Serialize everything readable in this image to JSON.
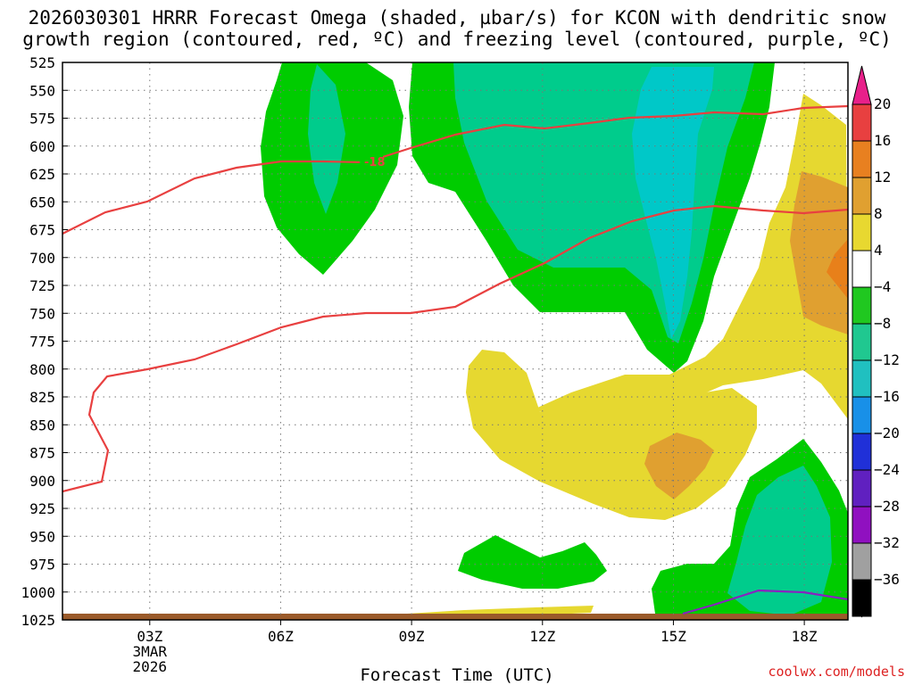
{
  "title": {
    "line1": "2026030301 HRRR Forecast Omega (shaded, µbar/s) for KCON with dendritic snow",
    "line2": "growth region (contoured, red, ºC) and freezing level (contoured, purple, ºC)"
  },
  "xlabel": "Forecast Time (UTC)",
  "credit": "coolwx.com/models",
  "chart_data": {
    "type": "heatmap",
    "y_axis": {
      "label": "",
      "reversed": true,
      "ticks": [
        525,
        550,
        575,
        600,
        625,
        650,
        675,
        700,
        725,
        750,
        775,
        800,
        825,
        850,
        875,
        900,
        925,
        950,
        975,
        1000,
        1025
      ],
      "range": [
        525,
        1025
      ]
    },
    "x_axis": {
      "label": "Forecast Time (UTC)",
      "range_hours": [
        0,
        18
      ],
      "ticks": [
        {
          "hour": 2,
          "label": "03Z",
          "sub": [
            "3MAR",
            "2026"
          ]
        },
        {
          "hour": 5,
          "label": "06Z",
          "sub": []
        },
        {
          "hour": 8,
          "label": "09Z",
          "sub": []
        },
        {
          "hour": 11,
          "label": "12Z",
          "sub": []
        },
        {
          "hour": 14,
          "label": "15Z",
          "sub": []
        },
        {
          "hour": 17,
          "label": "18Z",
          "sub": []
        }
      ]
    },
    "colorbar": {
      "labels": [
        "20",
        "16",
        "12",
        "8",
        "4",
        "−4",
        "−8",
        "−12",
        "−16",
        "−20",
        "−24",
        "−28",
        "−32",
        "−36"
      ],
      "colors": [
        "#f04060",
        "#e84040",
        "#e88020",
        "#e0a030",
        "#e8d830",
        "#ffffff",
        "#20c820",
        "#20c890",
        "#20c0c0",
        "#1890e8",
        "#2030d8",
        "#6020c0",
        "#9010c0",
        "#a0a0a0",
        "#000000"
      ],
      "top_arrow_color": "#e8208a",
      "bottom_arrow_color": "#000000"
    },
    "contour_labels": [
      {
        "text": "-18",
        "color": "#e84040"
      }
    ],
    "colors": {
      "green": "#00cc00",
      "teal": "#00cc8c",
      "cyan": "#00c8c8",
      "yellow": "#e6d830",
      "orange": "#e0a030",
      "deep_orange": "#e8801a",
      "dgz": "#e84040",
      "freezing": "#8822c0",
      "ground": "#9a5a2a",
      "grid": "#777777"
    }
  }
}
